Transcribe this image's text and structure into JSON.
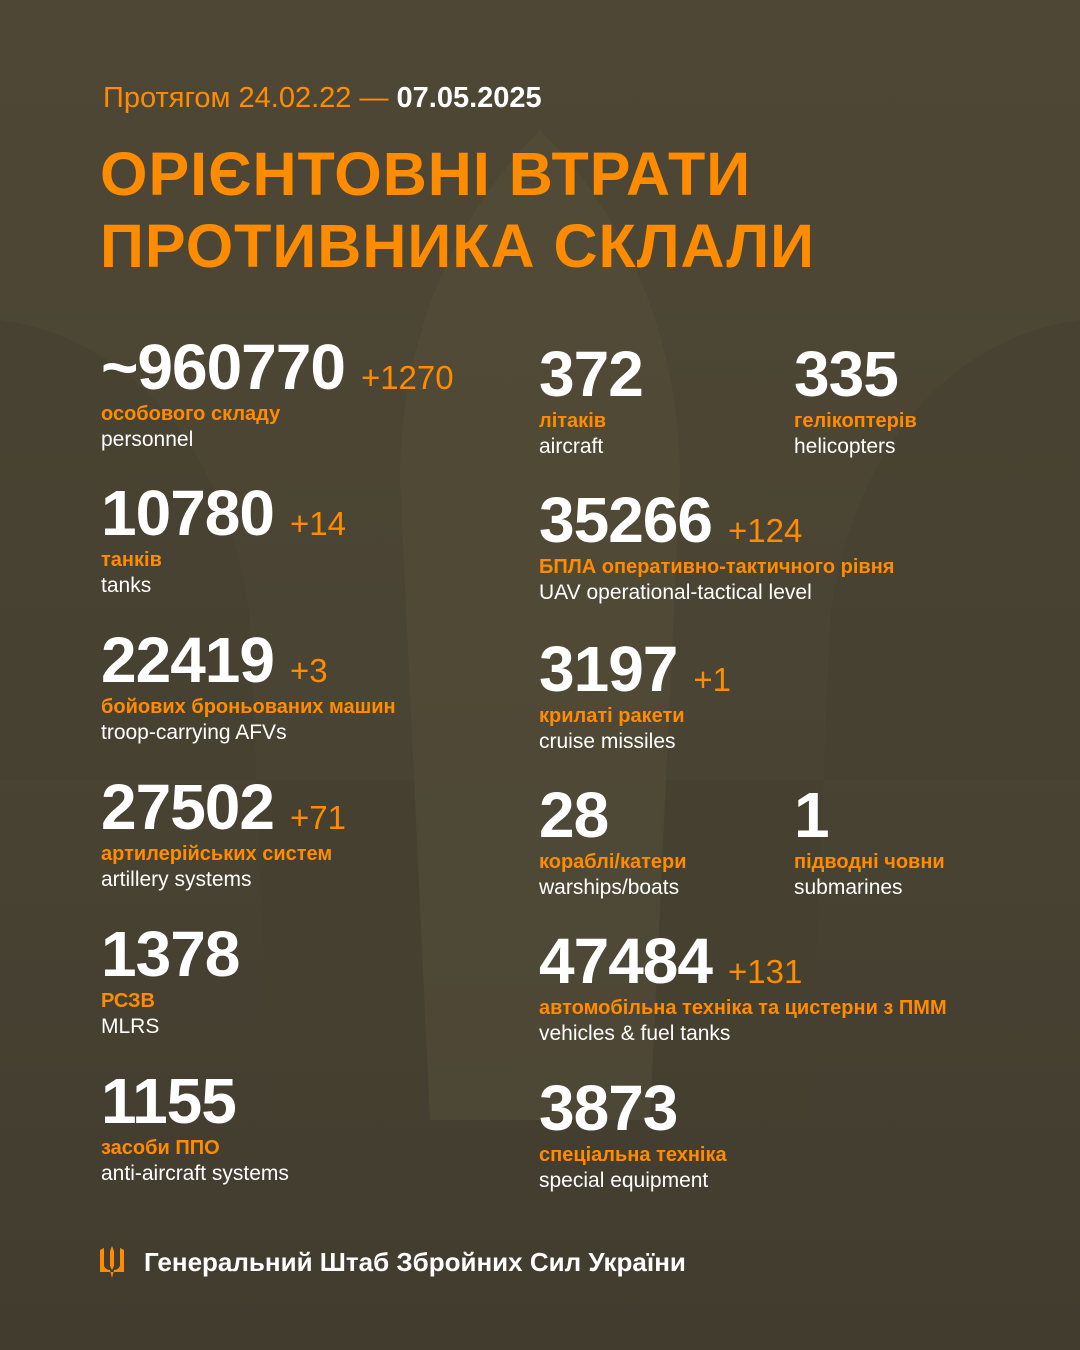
{
  "header": {
    "period_prefix": "Протягом 24.02.22 —",
    "date": "07.05.2025"
  },
  "title": {
    "line1": "ОРІЄНТОВНІ ВТРАТИ",
    "line2": "ПРОТИВНИКА СКЛАЛИ"
  },
  "colors": {
    "accent": "#ff8c00",
    "background": "#4a4434",
    "text": "#ffffff"
  },
  "stats": [
    {
      "value": "~960770",
      "delta": "+1270",
      "ua": "особового складу",
      "en": "personnel"
    },
    {
      "value": "10780",
      "delta": "+14",
      "ua": "танків",
      "en": "tanks"
    },
    {
      "value": "22419",
      "delta": "+3",
      "ua": "бойових броньованих машин",
      "en": "troop-carrying AFVs"
    },
    {
      "value": "27502",
      "delta": "+71",
      "ua": "артилерійських систем",
      "en": "artillery systems"
    },
    {
      "value": "1378",
      "delta": "",
      "ua": "РСЗВ",
      "en": "MLRS"
    },
    {
      "value": "1155",
      "delta": "",
      "ua": "засоби ППО",
      "en": "anti-aircraft systems"
    },
    {
      "value": "372",
      "delta": "",
      "ua": "літаків",
      "en": "aircraft"
    },
    {
      "value": "335",
      "delta": "",
      "ua": "гелікоптерів",
      "en": "helicopters"
    },
    {
      "value": "35266",
      "delta": "+124",
      "ua": "БПЛА оперативно-тактичного рівня",
      "en": "UAV operational-tactical level"
    },
    {
      "value": "3197",
      "delta": "+1",
      "ua": "крилаті ракети",
      "en": "cruise missiles"
    },
    {
      "value": "28",
      "delta": "",
      "ua": "кораблі/катери",
      "en": "warships/boats"
    },
    {
      "value": "1",
      "delta": "",
      "ua": "підводні човни",
      "en": "submarines"
    },
    {
      "value": "47484",
      "delta": "+131",
      "ua": "автомобільна техніка та цистерни з ПММ",
      "en": "vehicles & fuel tanks"
    },
    {
      "value": "3873",
      "delta": "",
      "ua": "спеціальна техніка",
      "en": "special equipment"
    }
  ],
  "footer": {
    "icon": "trident-icon",
    "org": "Генеральний Штаб Збройних Сил України"
  }
}
